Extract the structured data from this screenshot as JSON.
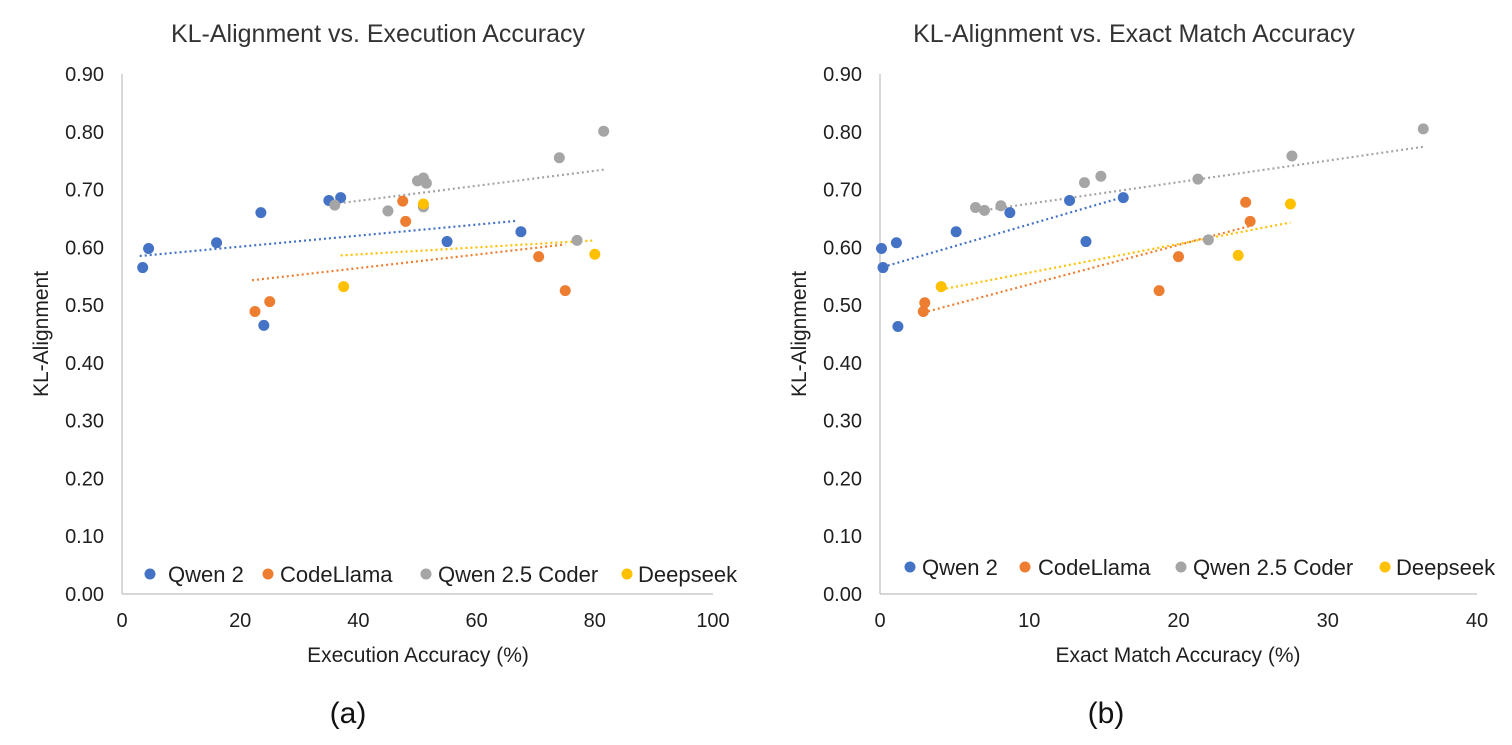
{
  "chart_data": [
    {
      "type": "scatter",
      "title": "KL-Alignment vs. Execution Accuracy",
      "xlabel": "Execution Accuracy (%)",
      "ylabel": "KL-Alignment",
      "xlim": [
        0,
        100
      ],
      "ylim": [
        0,
        0.9
      ],
      "xticks": [
        "0",
        "20",
        "40",
        "60",
        "80",
        "100"
      ],
      "yticks": [
        "0.00",
        "0.10",
        "0.20",
        "0.30",
        "0.40",
        "0.50",
        "0.60",
        "0.70",
        "0.80",
        "0.90"
      ],
      "legend_position": "bottom",
      "caption": "(a)",
      "series": [
        {
          "name": "Qwen 2",
          "color": "#4472C4",
          "points": [
            [
              3.5,
              0.565
            ],
            [
              4.5,
              0.598
            ],
            [
              16,
              0.608
            ],
            [
              23.5,
              0.66
            ],
            [
              24,
              0.465
            ],
            [
              35,
              0.681
            ],
            [
              37,
              0.686
            ],
            [
              55,
              0.61
            ],
            [
              67.5,
              0.627
            ]
          ],
          "trendline": [
            [
              3,
              0.585
            ],
            [
              67,
              0.646
            ]
          ]
        },
        {
          "name": "CodeLlama",
          "color": "#ED7D31",
          "points": [
            [
              22.5,
              0.489
            ],
            [
              25,
              0.506
            ],
            [
              47.5,
              0.68
            ],
            [
              48,
              0.645
            ],
            [
              70.5,
              0.584
            ],
            [
              75,
              0.525
            ]
          ],
          "trendline": [
            [
              22,
              0.543
            ],
            [
              75,
              0.605
            ]
          ]
        },
        {
          "name": "Qwen 2.5 Coder",
          "color": "#A5A5A5",
          "points": [
            [
              36,
              0.673
            ],
            [
              45,
              0.663
            ],
            [
              50,
              0.715
            ],
            [
              51,
              0.72
            ],
            [
              51,
              0.67
            ],
            [
              51.5,
              0.711
            ],
            [
              74,
              0.755
            ],
            [
              77,
              0.612
            ],
            [
              81.5,
              0.801
            ]
          ],
          "trendline": [
            [
              35,
              0.674
            ],
            [
              82,
              0.735
            ]
          ]
        },
        {
          "name": "Deepseek",
          "color": "#FFC000",
          "points": [
            [
              37.5,
              0.532
            ],
            [
              51,
              0.675
            ],
            [
              80,
              0.588
            ]
          ],
          "trendline": [
            [
              37,
              0.586
            ],
            [
              80,
              0.612
            ]
          ]
        }
      ]
    },
    {
      "type": "scatter",
      "title": "KL-Alignment vs. Exact Match Accuracy",
      "xlabel": "Exact Match Accuracy (%)",
      "ylabel": "KL-Alignment",
      "xlim": [
        0,
        40
      ],
      "ylim": [
        0,
        0.9
      ],
      "xticks": [
        "0",
        "10",
        "20",
        "30",
        "40"
      ],
      "yticks": [
        "0.00",
        "0.10",
        "0.20",
        "0.30",
        "0.40",
        "0.50",
        "0.60",
        "0.70",
        "0.80",
        "0.90"
      ],
      "legend_position": "bottom",
      "caption": "(b)",
      "series": [
        {
          "name": "Qwen 2",
          "color": "#4472C4",
          "points": [
            [
              0.1,
              0.598
            ],
            [
              0.2,
              0.565
            ],
            [
              1.1,
              0.608
            ],
            [
              1.2,
              0.463
            ],
            [
              5.1,
              0.627
            ],
            [
              8.7,
              0.66
            ],
            [
              12.7,
              0.681
            ],
            [
              13.8,
              0.61
            ],
            [
              16.3,
              0.686
            ]
          ],
          "trendline": [
            [
              0.2,
              0.566
            ],
            [
              16.3,
              0.687
            ]
          ]
        },
        {
          "name": "CodeLlama",
          "color": "#ED7D31",
          "points": [
            [
              2.9,
              0.489
            ],
            [
              3.0,
              0.504
            ],
            [
              18.7,
              0.525
            ],
            [
              20.0,
              0.584
            ],
            [
              24.5,
              0.678
            ],
            [
              24.8,
              0.645
            ]
          ],
          "trendline": [
            [
              2.9,
              0.487
            ],
            [
              24.8,
              0.637
            ]
          ]
        },
        {
          "name": "Qwen 2.5 Coder",
          "color": "#A5A5A5",
          "points": [
            [
              6.4,
              0.669
            ],
            [
              7.0,
              0.664
            ],
            [
              8.1,
              0.672
            ],
            [
              13.7,
              0.712
            ],
            [
              14.8,
              0.723
            ],
            [
              21.3,
              0.718
            ],
            [
              22.0,
              0.613
            ],
            [
              27.6,
              0.758
            ],
            [
              36.4,
              0.805
            ]
          ],
          "trendline": [
            [
              6.4,
              0.662
            ],
            [
              36.4,
              0.774
            ]
          ]
        },
        {
          "name": "Deepseek",
          "color": "#FFC000",
          "points": [
            [
              4.1,
              0.532
            ],
            [
              24.0,
              0.586
            ],
            [
              27.5,
              0.675
            ]
          ],
          "trendline": [
            [
              4.1,
              0.527
            ],
            [
              27.5,
              0.643
            ]
          ]
        }
      ]
    }
  ]
}
